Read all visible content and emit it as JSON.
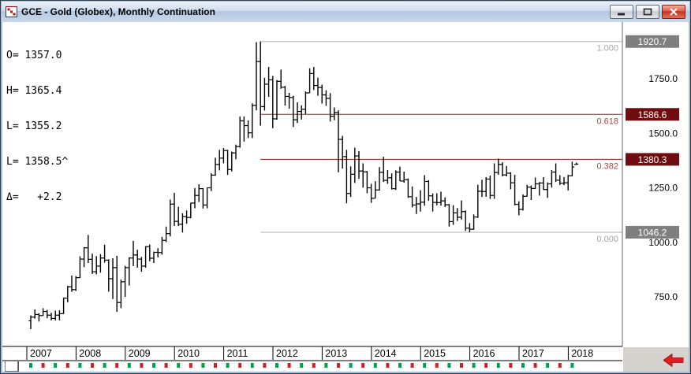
{
  "window": {
    "title": "GCE - Gold (Globex), Monthly Continuation"
  },
  "quote": {
    "lines": [
      "O= 1357.0",
      "H= 1365.4",
      "L= 1355.2",
      "L= 1358.5^",
      "Δ=   +2.2"
    ]
  },
  "chart_data": {
    "type": "bar",
    "subtype": "ohlc-monthly-bars",
    "title": "GCE - Gold (Globex), Monthly Continuation",
    "x_start": "2007-01",
    "x_end": "2018-02",
    "x_ticks": [
      "2007",
      "2008",
      "2009",
      "2010",
      "2011",
      "2012",
      "2013",
      "2014",
      "2015",
      "2016",
      "2017",
      "2018"
    ],
    "ylim": [
      530,
      1990
    ],
    "grid": "off",
    "colors": {
      "bar": "#000000",
      "up": "#00a14b",
      "down": "#cf2027"
    },
    "y_axis": {
      "ticks": [
        {
          "label": "1750.0",
          "price": 1750
        },
        {
          "label": "1500.0",
          "price": 1500
        },
        {
          "label": "1250.0",
          "price": 1250
        },
        {
          "label": "1000.0",
          "price": 1000
        },
        {
          "label": "750.0",
          "price": 750
        }
      ]
    },
    "fib_anchor_month": 56,
    "fib_levels": [
      {
        "ratio": "1.000",
        "price": 1920.7,
        "axis_label": "1920.7",
        "line_color": "#b2b2b2",
        "label_color": "#a6a6a6",
        "box_color": "#7f7f7f"
      },
      {
        "ratio": "0.618",
        "price": 1586.6,
        "axis_label": "1586.6",
        "line_color": "#8e1b1e",
        "label_color": "#a04848",
        "box_color": "#6f0d10"
      },
      {
        "ratio": "0.382",
        "price": 1380.3,
        "axis_label": "1380.3",
        "line_color": "#8e1b1e",
        "label_color": "#a04848",
        "box_color": "#6f0d10"
      },
      {
        "ratio": "0.000",
        "price": 1046.2,
        "axis_label": "1046.2",
        "line_color": "#b2b2b2",
        "label_color": "#a6a6a6",
        "box_color": "#7f7f7f"
      }
    ],
    "bars": [
      [
        640,
        665,
        602,
        657
      ],
      [
        657,
        692,
        650,
        669
      ],
      [
        669,
        675,
        637,
        664
      ],
      [
        664,
        698,
        663,
        683
      ],
      [
        683,
        690,
        652,
        666
      ],
      [
        666,
        677,
        642,
        651
      ],
      [
        651,
        687,
        642,
        666
      ],
      [
        666,
        688,
        642,
        673
      ],
      [
        673,
        747,
        672,
        744
      ],
      [
        744,
        800,
        725,
        796
      ],
      [
        796,
        848,
        773,
        783
      ],
      [
        783,
        845,
        777,
        838
      ],
      [
        838,
        936,
        837,
        923
      ],
      [
        923,
        978,
        886,
        975
      ],
      [
        975,
        1034,
        905,
        922
      ],
      [
        922,
        948,
        855,
        865
      ],
      [
        865,
        937,
        853,
        891
      ],
      [
        891,
        946,
        861,
        928
      ],
      [
        928,
        989,
        907,
        918
      ],
      [
        918,
        922,
        774,
        833
      ],
      [
        833,
        927,
        740,
        884
      ],
      [
        884,
        938,
        681,
        724
      ],
      [
        724,
        829,
        698,
        819
      ],
      [
        819,
        892,
        750,
        884
      ],
      [
        884,
        931,
        802,
        928
      ],
      [
        928,
        1007,
        891,
        942
      ],
      [
        942,
        966,
        884,
        923
      ],
      [
        923,
        933,
        865,
        891
      ],
      [
        891,
        982,
        884,
        980
      ],
      [
        980,
        990,
        913,
        927
      ],
      [
        927,
        957,
        905,
        954
      ],
      [
        954,
        973,
        931,
        953
      ],
      [
        953,
        1025,
        943,
        1009
      ],
      [
        1009,
        1072,
        1001,
        1040
      ],
      [
        1040,
        1196,
        1027,
        1175
      ],
      [
        1175,
        1227,
        1075,
        1096
      ],
      [
        1096,
        1163,
        1075,
        1083
      ],
      [
        1083,
        1133,
        1045,
        1118
      ],
      [
        1118,
        1146,
        1085,
        1114
      ],
      [
        1114,
        1181,
        1110,
        1180
      ],
      [
        1180,
        1249,
        1156,
        1215
      ],
      [
        1215,
        1266,
        1185,
        1246
      ],
      [
        1246,
        1248,
        1155,
        1171
      ],
      [
        1171,
        1250,
        1156,
        1250
      ],
      [
        1250,
        1317,
        1235,
        1308
      ],
      [
        1308,
        1388,
        1305,
        1357
      ],
      [
        1357,
        1424,
        1330,
        1386
      ],
      [
        1386,
        1432,
        1362,
        1421
      ],
      [
        1421,
        1424,
        1309,
        1334
      ],
      [
        1334,
        1416,
        1325,
        1410
      ],
      [
        1410,
        1448,
        1381,
        1439
      ],
      [
        1439,
        1577,
        1434,
        1557
      ],
      [
        1557,
        1577,
        1462,
        1535
      ],
      [
        1535,
        1559,
        1478,
        1502
      ],
      [
        1502,
        1637,
        1478,
        1628
      ],
      [
        1628,
        1918,
        1605,
        1829
      ],
      [
        1829,
        1920.7,
        1535,
        1622
      ],
      [
        1622,
        1754,
        1604,
        1725
      ],
      [
        1725,
        1804,
        1667,
        1745
      ],
      [
        1745,
        1763,
        1523,
        1566
      ],
      [
        1566,
        1744,
        1562,
        1738
      ],
      [
        1738,
        1792,
        1704,
        1711
      ],
      [
        1711,
        1717,
        1627,
        1669
      ],
      [
        1669,
        1685,
        1613,
        1664
      ],
      [
        1664,
        1672,
        1529,
        1562
      ],
      [
        1562,
        1642,
        1547,
        1600
      ],
      [
        1600,
        1628,
        1563,
        1610
      ],
      [
        1610,
        1692,
        1588,
        1685
      ],
      [
        1685,
        1798,
        1685,
        1774
      ],
      [
        1774,
        1804,
        1698,
        1719
      ],
      [
        1719,
        1755,
        1672,
        1710
      ],
      [
        1710,
        1723,
        1636,
        1676
      ],
      [
        1676,
        1697,
        1626,
        1660
      ],
      [
        1660,
        1684,
        1554,
        1578
      ],
      [
        1578,
        1618,
        1560,
        1595
      ],
      [
        1595,
        1605,
        1321,
        1472
      ],
      [
        1472,
        1488,
        1338,
        1393
      ],
      [
        1393,
        1424,
        1179,
        1224
      ],
      [
        1224,
        1348,
        1208,
        1312
      ],
      [
        1312,
        1434,
        1272,
        1396
      ],
      [
        1396,
        1418,
        1291,
        1327
      ],
      [
        1327,
        1362,
        1251,
        1323
      ],
      [
        1323,
        1327,
        1225,
        1250
      ],
      [
        1250,
        1268,
        1181,
        1202
      ],
      [
        1202,
        1280,
        1202,
        1240
      ],
      [
        1240,
        1345,
        1237,
        1321
      ],
      [
        1321,
        1392,
        1277,
        1284
      ],
      [
        1284,
        1331,
        1268,
        1296
      ],
      [
        1296,
        1316,
        1242,
        1246
      ],
      [
        1246,
        1330,
        1240,
        1322
      ],
      [
        1322,
        1347,
        1281,
        1281
      ],
      [
        1281,
        1324,
        1273,
        1287
      ],
      [
        1287,
        1293,
        1204,
        1209
      ],
      [
        1209,
        1256,
        1160,
        1171
      ],
      [
        1171,
        1208,
        1130,
        1176
      ],
      [
        1176,
        1239,
        1141,
        1184
      ],
      [
        1184,
        1308,
        1168,
        1279
      ],
      [
        1279,
        1285,
        1190,
        1213
      ],
      [
        1213,
        1224,
        1141,
        1183
      ],
      [
        1183,
        1225,
        1170,
        1182
      ],
      [
        1182,
        1232,
        1168,
        1190
      ],
      [
        1190,
        1206,
        1162,
        1172
      ],
      [
        1172,
        1176,
        1072,
        1095
      ],
      [
        1095,
        1170,
        1080,
        1135
      ],
      [
        1135,
        1157,
        1098,
        1115
      ],
      [
        1115,
        1192,
        1104,
        1141
      ],
      [
        1141,
        1146,
        1052,
        1065
      ],
      [
        1065,
        1088,
        1046.2,
        1060
      ],
      [
        1060,
        1128,
        1058,
        1116
      ],
      [
        1116,
        1264,
        1112,
        1234
      ],
      [
        1234,
        1287,
        1208,
        1233
      ],
      [
        1233,
        1299,
        1209,
        1290
      ],
      [
        1290,
        1306,
        1199,
        1215
      ],
      [
        1215,
        1362,
        1199,
        1320
      ],
      [
        1320,
        1384,
        1310,
        1357
      ],
      [
        1357,
        1367,
        1302,
        1309
      ],
      [
        1309,
        1350,
        1302,
        1317
      ],
      [
        1317,
        1321,
        1243,
        1273
      ],
      [
        1273,
        1309,
        1170,
        1174
      ],
      [
        1174,
        1188,
        1124,
        1151
      ],
      [
        1151,
        1220,
        1146,
        1211
      ],
      [
        1211,
        1264,
        1210,
        1253
      ],
      [
        1253,
        1261,
        1194,
        1247
      ],
      [
        1247,
        1297,
        1244,
        1268
      ],
      [
        1268,
        1276,
        1214,
        1272
      ],
      [
        1272,
        1299,
        1240,
        1242
      ],
      [
        1242,
        1275,
        1204,
        1268
      ],
      [
        1268,
        1331,
        1251,
        1322
      ],
      [
        1322,
        1362,
        1277,
        1285
      ],
      [
        1285,
        1308,
        1263,
        1271
      ],
      [
        1271,
        1299,
        1262,
        1273
      ],
      [
        1273,
        1309,
        1238,
        1305
      ],
      [
        1305,
        1370,
        1303,
        1345
      ],
      [
        1357,
        1365.4,
        1355.2,
        1358.5
      ]
    ],
    "session_marks": [
      [
        0,
        "u"
      ],
      [
        3,
        "d"
      ],
      [
        6,
        "u"
      ],
      [
        9,
        "d"
      ],
      [
        12,
        "u"
      ],
      [
        15,
        "d"
      ],
      [
        18,
        "u"
      ],
      [
        21,
        "d"
      ],
      [
        24,
        "u"
      ],
      [
        27,
        "d"
      ],
      [
        30,
        "u"
      ],
      [
        33,
        "d"
      ],
      [
        36,
        "u"
      ],
      [
        39,
        "d"
      ],
      [
        42,
        "u"
      ],
      [
        45,
        "d"
      ],
      [
        48,
        "u"
      ],
      [
        51,
        "d"
      ],
      [
        54,
        "u"
      ],
      [
        57,
        "d"
      ],
      [
        60,
        "u"
      ],
      [
        63,
        "d"
      ],
      [
        66,
        "u"
      ],
      [
        69,
        "d"
      ],
      [
        72,
        "u"
      ],
      [
        75,
        "d"
      ],
      [
        78,
        "u"
      ],
      [
        81,
        "d"
      ],
      [
        84,
        "u"
      ],
      [
        87,
        "d"
      ],
      [
        90,
        "u"
      ],
      [
        93,
        "d"
      ],
      [
        96,
        "u"
      ],
      [
        99,
        "d"
      ],
      [
        102,
        "u"
      ],
      [
        105,
        "d"
      ],
      [
        108,
        "u"
      ],
      [
        111,
        "d"
      ],
      [
        114,
        "u"
      ],
      [
        117,
        "d"
      ],
      [
        120,
        "u"
      ],
      [
        123,
        "d"
      ],
      [
        126,
        "u"
      ],
      [
        129,
        "d"
      ],
      [
        132,
        "u"
      ]
    ]
  }
}
